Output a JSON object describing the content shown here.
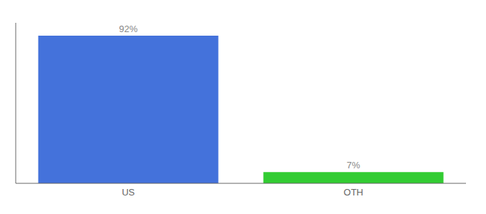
{
  "chart_data": {
    "type": "bar",
    "categories": [
      "US",
      "OTH"
    ],
    "values": [
      92,
      7
    ],
    "value_labels": [
      "92%",
      "7%"
    ],
    "colors": [
      "#4472DB",
      "#33CC33"
    ],
    "ylim": [
      0,
      100
    ],
    "data_labels": true,
    "tick_labels": "x",
    "grid": false
  }
}
